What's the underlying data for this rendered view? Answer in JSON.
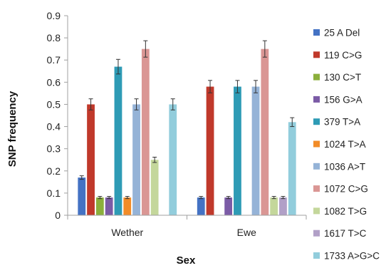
{
  "chart_data": {
    "type": "bar",
    "title": "",
    "xlabel": "Sex",
    "ylabel": "SNP frequency",
    "categories": [
      "Wether",
      "Ewe"
    ],
    "ylim": [
      0,
      0.9
    ],
    "yticks": [
      "0",
      "0.1",
      "0.2",
      "0.3",
      "0.4",
      "0.5",
      "0.6",
      "0.7",
      "0.8",
      "0.9"
    ],
    "grid": false,
    "legend_position": "right",
    "error_bars": true,
    "series": [
      {
        "name": "25 A Del",
        "color": "#4472C4",
        "values": [
          0.17,
          0.08
        ],
        "errors": [
          0.008,
          0.005
        ]
      },
      {
        "name": "119 C>G",
        "color": "#C0392B",
        "values": [
          0.5,
          0.58
        ],
        "errors": [
          0.025,
          0.028
        ]
      },
      {
        "name": "130 C>T",
        "color": "#8BAF3C",
        "values": [
          0.08,
          0
        ],
        "errors": [
          0.005,
          0
        ]
      },
      {
        "name": "156 G>A",
        "color": "#7B5BA6",
        "values": [
          0.08,
          0.08
        ],
        "errors": [
          0.005,
          0.005
        ]
      },
      {
        "name": "379 T>A",
        "color": "#2E9BB5",
        "values": [
          0.67,
          0.58
        ],
        "errors": [
          0.033,
          0.028
        ]
      },
      {
        "name": "1024 T>A",
        "color": "#F28C28",
        "values": [
          0.08,
          0
        ],
        "errors": [
          0.005,
          0
        ]
      },
      {
        "name": "1036 A>T",
        "color": "#95B3D7",
        "values": [
          0.5,
          0.58
        ],
        "errors": [
          0.025,
          0.028
        ]
      },
      {
        "name": "1072 C>G",
        "color": "#DA9694",
        "values": [
          0.75,
          0.75
        ],
        "errors": [
          0.037,
          0.037
        ]
      },
      {
        "name": "1082 T>G",
        "color": "#C4D79B",
        "values": [
          0.25,
          0.08
        ],
        "errors": [
          0.012,
          0.005
        ]
      },
      {
        "name": "1617 T>C",
        "color": "#B1A0C7",
        "values": [
          0,
          0.08
        ],
        "errors": [
          0,
          0.005
        ]
      },
      {
        "name": "1733 A>G>C",
        "color": "#92CDDC",
        "values": [
          0.5,
          0.42
        ],
        "errors": [
          0.025,
          0.02
        ]
      }
    ]
  }
}
